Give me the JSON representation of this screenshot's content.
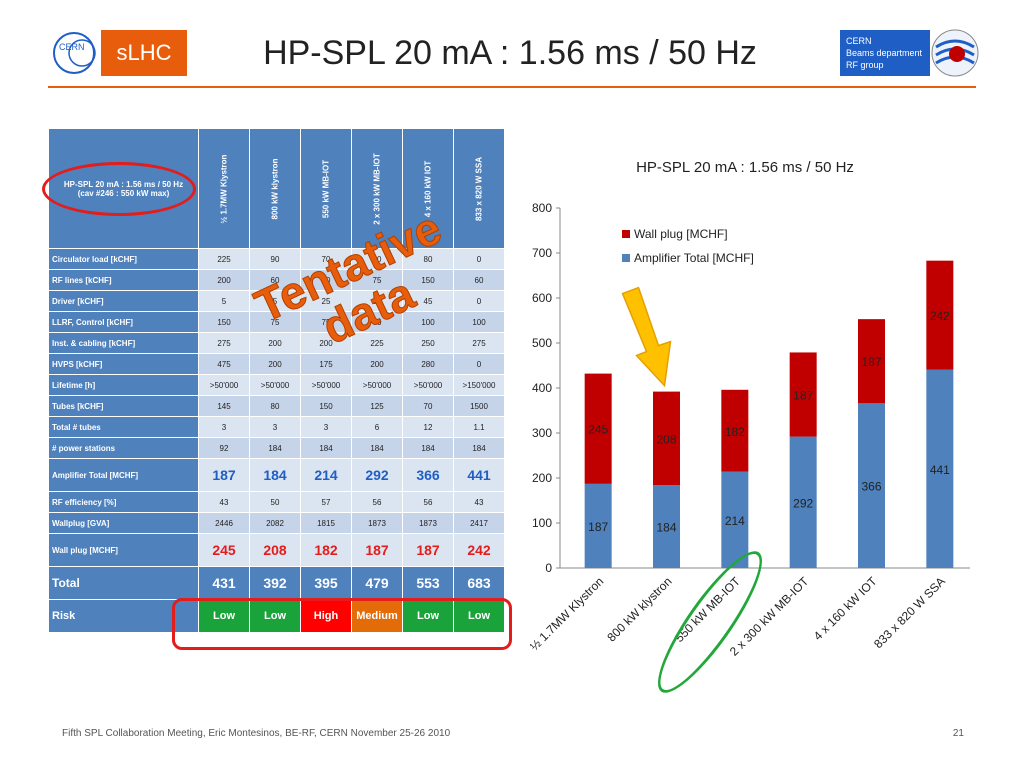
{
  "header": {
    "title": "HP-SPL 20 mA : 1.56 ms / 50 Hz",
    "slhc_label": "sLHC",
    "cern_logo_text": "CERN",
    "cern_info": [
      "CERN",
      "Beams department",
      "RF group"
    ]
  },
  "table": {
    "corner": [
      "HP-SPL 20 mA : 1.56 ms / 50 Hz",
      "(cav #246 : 550 kW max)"
    ],
    "columns": [
      "½ 1.7MW Klystron",
      "800 kW klystron",
      "550 kW MB-IOT",
      "2 x 300 kW MB-IOT",
      "4 x 160 kW IOT",
      "833 x 820 W SSA"
    ],
    "rows": [
      {
        "label": "Circulator load [kCHF]",
        "values": [
          "225",
          "90",
          "70",
          "80",
          "80",
          "0"
        ]
      },
      {
        "label": "RF lines [kCHF]",
        "values": [
          "200",
          "60",
          "60",
          "75",
          "150",
          "60"
        ]
      },
      {
        "label": "Driver [kCHF]",
        "values": [
          "5",
          "5",
          "25",
          "35",
          "45",
          "0"
        ]
      },
      {
        "label": "LLRF, Control [kCHF]",
        "values": [
          "150",
          "75",
          "75",
          "75",
          "100",
          "100"
        ]
      },
      {
        "label": "Inst. & cabling [kCHF]",
        "values": [
          "275",
          "200",
          "200",
          "225",
          "250",
          "275"
        ]
      },
      {
        "label": "HVPS [kCHF]",
        "values": [
          "475",
          "200",
          "175",
          "200",
          "280",
          "0"
        ]
      },
      {
        "label": "Lifetime [h]",
        "values": [
          ">50'000",
          ">50'000",
          ">50'000",
          ">50'000",
          ">50'000",
          ">150'000"
        ]
      },
      {
        "label": "Tubes [kCHF]",
        "values": [
          "145",
          "80",
          "150",
          "125",
          "70",
          "1500"
        ]
      },
      {
        "label": "Total # tubes",
        "values": [
          "3",
          "3",
          "3",
          "6",
          "12",
          "1.1"
        ]
      },
      {
        "label": "# power stations",
        "values": [
          "92",
          "184",
          "184",
          "184",
          "184",
          "184"
        ]
      }
    ],
    "amplifier_row": {
      "label": "Amplifier Total [MCHF]",
      "values": [
        "187",
        "184",
        "214",
        "292",
        "366",
        "441"
      ]
    },
    "rows2": [
      {
        "label": "RF efficiency [%]",
        "values": [
          "43",
          "50",
          "57",
          "56",
          "56",
          "43"
        ]
      },
      {
        "label": "Wallplug [GVA]",
        "values": [
          "2446",
          "2082",
          "1815",
          "1873",
          "1873",
          "2417"
        ]
      }
    ],
    "wallplug_row": {
      "label": "Wall plug [MCHF]",
      "values": [
        "245",
        "208",
        "182",
        "187",
        "187",
        "242"
      ]
    },
    "total_row": {
      "label": "Total",
      "values": [
        "431",
        "392",
        "395",
        "479",
        "553",
        "683"
      ]
    },
    "risk_row": {
      "label": "Risk",
      "values": [
        "Low",
        "Low",
        "High",
        "Medium",
        "Low",
        "Low"
      ],
      "colors": [
        "#1aa33a",
        "#1aa33a",
        "#ff0000",
        "#e36c09",
        "#1aa33a",
        "#1aa33a"
      ]
    }
  },
  "stamp": {
    "line1": "Tentative",
    "line2": "data"
  },
  "chart_data": {
    "type": "bar",
    "stacked": true,
    "title": "HP-SPL 20 mA : 1.56 ms / 50 Hz",
    "categories": [
      "½ 1.7MW Klystron",
      "800 kW klystron",
      "550 kW MB-IOT",
      "2 x 300 kW MB-IOT",
      "4 x 160 kW IOT",
      "833 x 820 W SSA"
    ],
    "series": [
      {
        "name": "Amplifier Total [MCHF]",
        "values": [
          187,
          184,
          214,
          292,
          366,
          441
        ],
        "color": "#4f81bd"
      },
      {
        "name": "Wall plug [MCHF]",
        "values": [
          245,
          208,
          182,
          187,
          187,
          242
        ],
        "color": "#c00000"
      }
    ],
    "ylim": [
      0,
      800
    ],
    "yticks": [
      0,
      100,
      200,
      300,
      400,
      500,
      600,
      700,
      800
    ],
    "legend": "top-left",
    "grid": false,
    "annotation": "arrow pointing to 800 kW klystron bar"
  },
  "footer": {
    "text": "Fifth SPL Collaboration Meeting, Eric Montesinos, BE-RF, CERN November 25-26 2010",
    "page": "21"
  }
}
